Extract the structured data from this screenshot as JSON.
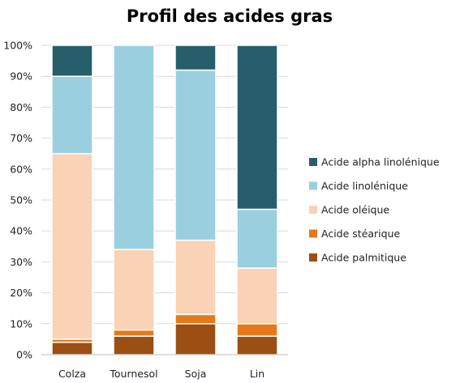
{
  "chart_data": {
    "type": "bar",
    "stacked": true,
    "title": "Profil des acides gras",
    "categories": [
      "Colza",
      "Tournesol",
      "Soja",
      "Lin"
    ],
    "ylim": [
      0,
      100
    ],
    "yticks": [
      "0%",
      "10%",
      "20%",
      "30%",
      "40%",
      "50%",
      "60%",
      "70%",
      "80%",
      "90%",
      "100%"
    ],
    "grid": true,
    "legend_position": "right",
    "series": [
      {
        "name": "Acide palmitique",
        "color": "#9c4f12",
        "values": [
          4,
          6,
          10,
          6
        ]
      },
      {
        "name": "Acide stéarique",
        "color": "#e47a1c",
        "values": [
          1,
          2,
          3,
          4
        ]
      },
      {
        "name": "Acide oléique",
        "color": "#fad2b6",
        "values": [
          60,
          26,
          24,
          18
        ]
      },
      {
        "name": "Acide linolénique",
        "color": "#9acfe0",
        "values": [
          25,
          66,
          55,
          19
        ]
      },
      {
        "name": "Acide alpha linolénique",
        "color": "#275e6c",
        "values": [
          10,
          0,
          8,
          53
        ]
      }
    ]
  }
}
